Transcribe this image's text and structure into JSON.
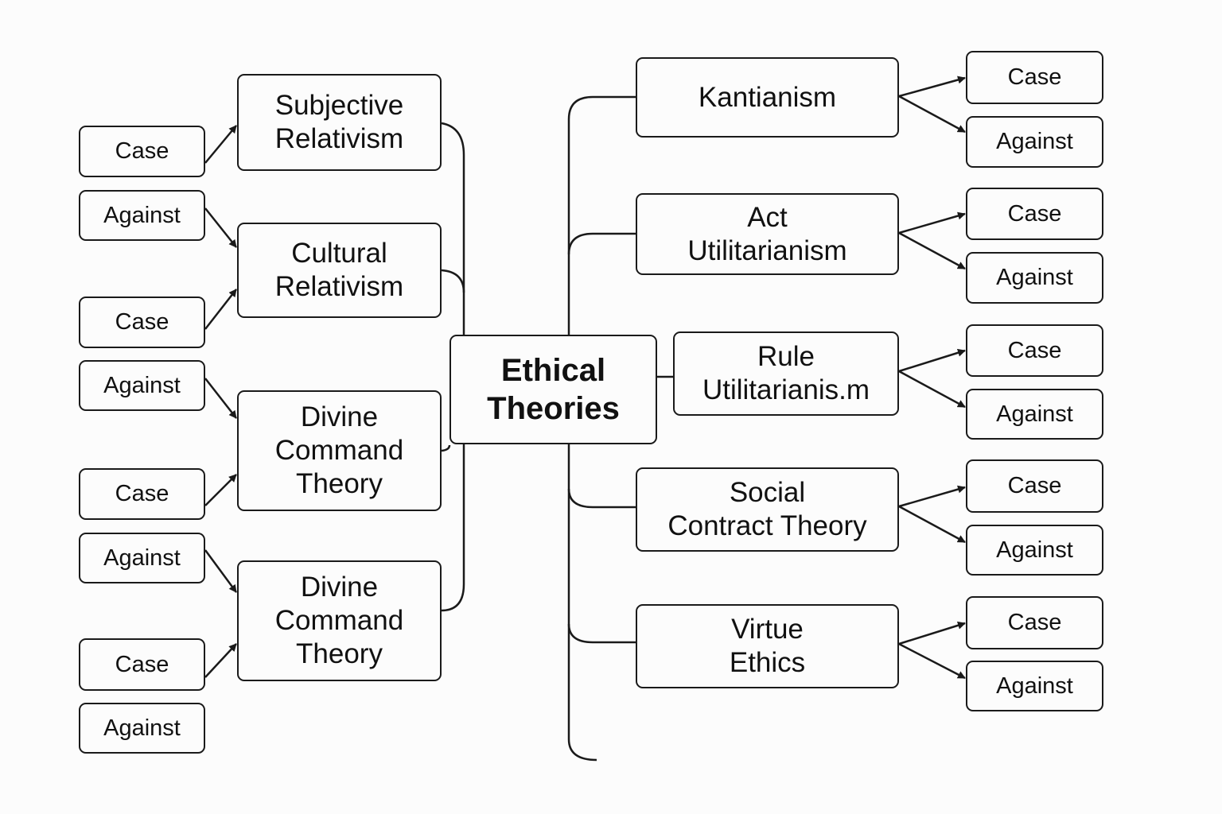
{
  "center": {
    "label": "Ethical\nTheories"
  },
  "left_topics": [
    {
      "label": "Subjective\nRelativism"
    },
    {
      "label": "Cultural\nRelativism"
    },
    {
      "label": "Divine\nCommand\nTheory"
    },
    {
      "label": "Divine\nCommand\nTheory"
    }
  ],
  "left_leaves": [
    {
      "label": "Case"
    },
    {
      "label": "Against"
    },
    {
      "label": "Case"
    },
    {
      "label": "Against"
    },
    {
      "label": "Case"
    },
    {
      "label": "Against"
    },
    {
      "label": "Case"
    },
    {
      "label": "Against"
    }
  ],
  "right_topics": [
    {
      "label": "Kantianism"
    },
    {
      "label": "Act\nUtilitarianism"
    },
    {
      "label": "Rule\nUtilitarianis.m"
    },
    {
      "label": "Social\nContract Theory"
    },
    {
      "label": "Virtue\nEthics"
    }
  ],
  "right_leaves": [
    {
      "case": "Case",
      "against": "Against"
    },
    {
      "case": "Case",
      "against": "Against"
    },
    {
      "case": "Case",
      "against": "Against"
    },
    {
      "case": "Case",
      "against": "Against"
    },
    {
      "case": "Case",
      "against": "Against"
    }
  ]
}
